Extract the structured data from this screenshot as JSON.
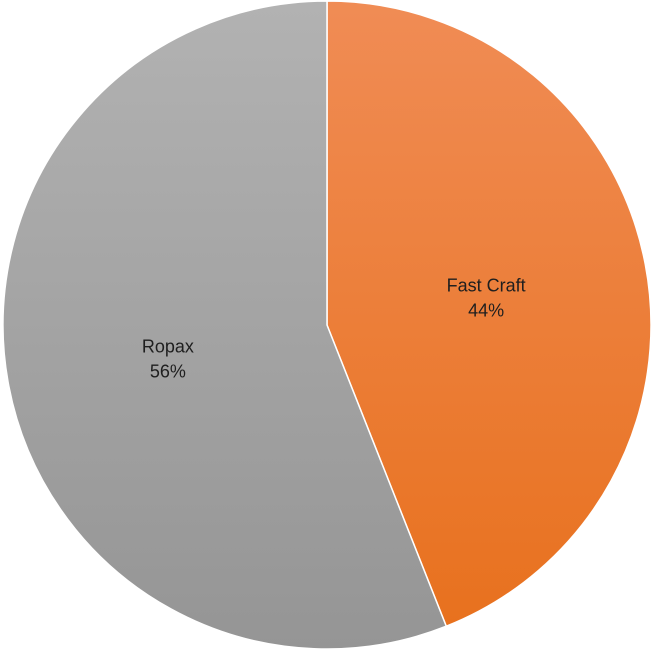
{
  "chart_data": {
    "type": "pie",
    "title": "",
    "slices": [
      {
        "label": "Fast Craft",
        "value": 44,
        "value_label": "44%",
        "color": "#ED7D31"
      },
      {
        "label": "Ropax",
        "value": 56,
        "value_label": "56%",
        "color": "#A5A5A5"
      }
    ],
    "start_angle": "12 o'clock",
    "direction": "clockwise",
    "legend": "none",
    "data_labels": "inside"
  }
}
